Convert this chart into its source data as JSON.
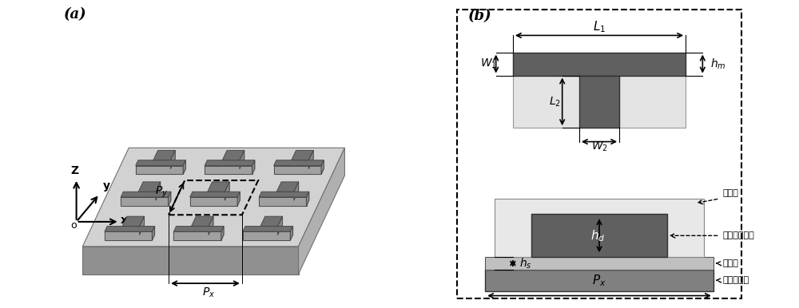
{
  "fig_width": 10.0,
  "fig_height": 3.86,
  "dpi": 100,
  "bg_color": "#ffffff",
  "label_a": "(a)",
  "label_b": "(b)",
  "dark_gray": "#606060",
  "mid_gray": "#909090",
  "light_gray": "#c8c8c8",
  "very_light_gray": "#e4e4e4",
  "slab_top_color": "#d2d2d2",
  "slab_front_color": "#909090",
  "slab_right_color": "#b0b0b0",
  "t_top_color": "#707070",
  "t_front_color": "#a0a0a0",
  "t_side_color": "#888888",
  "panel_b_labels": [
    "钓薄膜",
    "光刻胶微结构",
    "钓基底",
    "石英玻璃片"
  ],
  "glass_color": "#808080",
  "cr_base_color": "#c0c0c0",
  "pr_bg_color": "#e0e0e0",
  "pr_dark_color": "#606060"
}
